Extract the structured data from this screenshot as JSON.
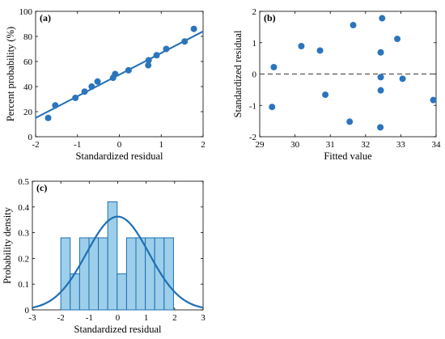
{
  "chart_data": [
    {
      "type": "scatter",
      "panel_label": "(a)",
      "xlabel": "Standardized residual",
      "ylabel": "Percent probability (%)",
      "xlim": [
        -2,
        2
      ],
      "ylim": [
        0,
        100
      ],
      "xticks": [
        -2,
        -1,
        0,
        1,
        2
      ],
      "yticks": [
        0,
        20,
        40,
        60,
        80,
        100
      ],
      "grid": false,
      "marker_color": "#2a75bb",
      "line_color": "#1f6fb5",
      "points": [
        {
          "x": -1.7,
          "y": 15
        },
        {
          "x": -1.53,
          "y": 25
        },
        {
          "x": -1.05,
          "y": 31
        },
        {
          "x": -0.83,
          "y": 36
        },
        {
          "x": -0.66,
          "y": 40
        },
        {
          "x": -0.52,
          "y": 44
        },
        {
          "x": -0.15,
          "y": 47
        },
        {
          "x": -0.1,
          "y": 50
        },
        {
          "x": 0.22,
          "y": 53
        },
        {
          "x": 0.69,
          "y": 57
        },
        {
          "x": 0.7,
          "y": 61
        },
        {
          "x": 0.89,
          "y": 65
        },
        {
          "x": 1.12,
          "y": 70
        },
        {
          "x": 1.56,
          "y": 76
        },
        {
          "x": 1.78,
          "y": 86
        }
      ],
      "fit_line": [
        {
          "x": -2,
          "y": 15
        },
        {
          "x": 2,
          "y": 84
        }
      ]
    },
    {
      "type": "scatter",
      "panel_label": "(b)",
      "xlabel": "Fitted value",
      "ylabel": "Standardized residual",
      "xlim": [
        29,
        34
      ],
      "ylim": [
        -2,
        2
      ],
      "xticks": [
        29,
        30,
        31,
        32,
        33,
        34
      ],
      "yticks": [
        -2,
        -1,
        0,
        1,
        2
      ],
      "grid": false,
      "reference_line_y": 0,
      "marker_color": "#2a75bb",
      "points": [
        {
          "x": 29.35,
          "y": -1.05
        },
        {
          "x": 29.4,
          "y": 0.22
        },
        {
          "x": 30.18,
          "y": 0.89
        },
        {
          "x": 30.71,
          "y": 0.75
        },
        {
          "x": 30.86,
          "y": -0.66
        },
        {
          "x": 31.55,
          "y": -1.52
        },
        {
          "x": 31.65,
          "y": 1.56
        },
        {
          "x": 32.42,
          "y": -1.7
        },
        {
          "x": 32.43,
          "y": -0.52
        },
        {
          "x": 32.43,
          "y": -0.1
        },
        {
          "x": 32.43,
          "y": 0.69
        },
        {
          "x": 32.47,
          "y": 1.78
        },
        {
          "x": 32.9,
          "y": 1.12
        },
        {
          "x": 33.05,
          "y": -0.15
        },
        {
          "x": 33.92,
          "y": -0.83
        }
      ]
    },
    {
      "type": "bar",
      "subtype": "histogram_with_normal_fit",
      "panel_label": "(c)",
      "xlabel": "Standardized residual",
      "ylabel": "Probability density",
      "xlim": [
        -3,
        3
      ],
      "ylim": [
        0,
        0.5
      ],
      "xticks": [
        -3,
        -2,
        -1,
        0,
        1,
        2,
        3
      ],
      "yticks": [
        0,
        0.1,
        0.2,
        0.3,
        0.4,
        0.5
      ],
      "grid": false,
      "bar_fill": "#9dcfea",
      "bar_edge": "#1f6fb5",
      "curve_color": "#1f6fb5",
      "bins": [
        {
          "x0": -2.0,
          "x1": -1.67,
          "density": 0.28
        },
        {
          "x0": -1.67,
          "x1": -1.34,
          "density": 0.14
        },
        {
          "x0": -1.34,
          "x1": -1.01,
          "density": 0.28
        },
        {
          "x0": -1.01,
          "x1": -0.68,
          "density": 0.28
        },
        {
          "x0": -0.68,
          "x1": -0.35,
          "density": 0.28
        },
        {
          "x0": -0.35,
          "x1": -0.02,
          "density": 0.42
        },
        {
          "x0": -0.02,
          "x1": 0.31,
          "density": 0.14
        },
        {
          "x0": 0.31,
          "x1": 0.64,
          "density": 0.28
        },
        {
          "x0": 0.64,
          "x1": 0.97,
          "density": 0.28
        },
        {
          "x0": 0.97,
          "x1": 1.3,
          "density": 0.28
        },
        {
          "x0": 1.3,
          "x1": 1.63,
          "density": 0.28
        },
        {
          "x0": 1.63,
          "x1": 1.96,
          "density": 0.28
        }
      ],
      "normal_fit": {
        "mean": 0,
        "sd": 1.1
      }
    }
  ]
}
